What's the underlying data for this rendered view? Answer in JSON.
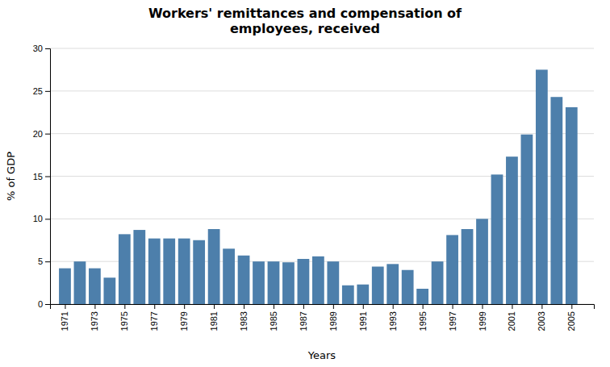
{
  "chart_data": {
    "type": "bar",
    "title": "Workers' remittances and compensation of\nemployees, received",
    "xlabel": "Years",
    "ylabel": "% of GDP",
    "x": [
      1971,
      1972,
      1973,
      1974,
      1975,
      1976,
      1977,
      1978,
      1979,
      1980,
      1981,
      1982,
      1983,
      1984,
      1985,
      1986,
      1987,
      1988,
      1989,
      1990,
      1991,
      1992,
      1993,
      1994,
      1995,
      1996,
      1997,
      1998,
      1999,
      2000,
      2001,
      2002,
      2003,
      2004,
      2005
    ],
    "values": [
      4.2,
      5.0,
      4.2,
      3.1,
      8.2,
      8.7,
      7.7,
      7.7,
      7.7,
      7.5,
      8.8,
      6.5,
      5.7,
      5.0,
      5.0,
      4.9,
      5.3,
      5.6,
      5.0,
      2.2,
      2.3,
      4.4,
      4.7,
      4.0,
      1.8,
      5.0,
      8.1,
      8.8,
      10.0,
      15.2,
      17.3,
      19.9,
      27.5,
      24.3,
      23.1
    ],
    "color": "#4d7fab",
    "xlim": [
      1970,
      2006.5
    ],
    "xticks": [
      1971,
      1973,
      1975,
      1977,
      1979,
      1981,
      1983,
      1985,
      1987,
      1989,
      1991,
      1993,
      1995,
      1997,
      1999,
      2001,
      2003,
      2005
    ],
    "ylim": [
      0,
      30
    ],
    "yticks": [
      0,
      5,
      10,
      15,
      20,
      25,
      30
    ],
    "grid": true
  }
}
